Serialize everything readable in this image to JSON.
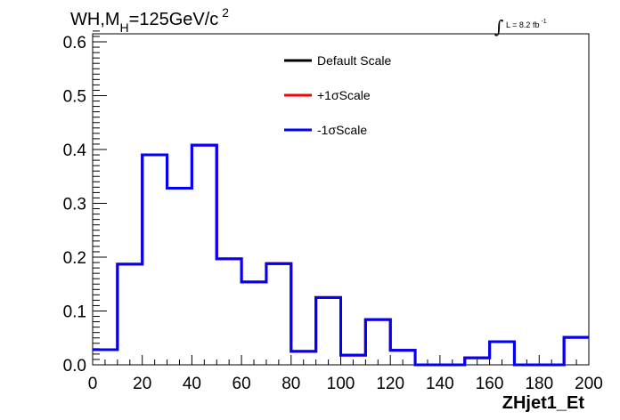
{
  "chart_data": {
    "type": "line",
    "title": {
      "main": "WH,M",
      "subscript": "H",
      "rest": "=125GeV/c",
      "superscript": "2"
    },
    "luminosity": {
      "symbol": "∫",
      "text": "L = 8.2 fb",
      "superscript": "-1"
    },
    "xlabel": "ZHjet1_Et",
    "ylabel": "",
    "xlim": [
      0,
      200
    ],
    "ylim": [
      0,
      0.62
    ],
    "x_ticks": [
      0,
      20,
      40,
      60,
      80,
      100,
      120,
      140,
      160,
      180,
      200
    ],
    "x_tick_labels": [
      "0",
      "20",
      "40",
      "60",
      "80",
      "100",
      "120",
      "140",
      "160",
      "180",
      "200"
    ],
    "y_ticks": [
      0,
      0.1,
      0.2,
      0.3,
      0.4,
      0.5,
      0.6
    ],
    "y_tick_labels": [
      "0.0",
      "0.1",
      "0.2",
      "0.3",
      "0.4",
      "0.5",
      "0.6"
    ],
    "bin_edges": [
      0,
      10,
      20,
      30,
      40,
      50,
      60,
      70,
      80,
      90,
      100,
      110,
      120,
      130,
      140,
      150,
      160,
      170,
      180,
      190,
      200
    ],
    "series": [
      {
        "name": "Default Scale",
        "color": "#000000",
        "values": [
          0.028,
          0.187,
          0.39,
          0.328,
          0.408,
          0.197,
          0.154,
          0.188,
          0.025,
          0.125,
          0.018,
          0.084,
          0.027,
          0.0,
          0.0,
          0.013,
          0.043,
          0.0,
          0.0,
          0.051
        ]
      },
      {
        "name": "+1σScale",
        "color": "#ff0000",
        "values": [
          0.028,
          0.187,
          0.39,
          0.328,
          0.408,
          0.197,
          0.154,
          0.188,
          0.025,
          0.125,
          0.018,
          0.084,
          0.027,
          0.0,
          0.0,
          0.013,
          0.043,
          0.0,
          0.0,
          0.051
        ]
      },
      {
        "name": "-1σScale",
        "color": "#0000ff",
        "values": [
          0.028,
          0.187,
          0.39,
          0.328,
          0.408,
          0.197,
          0.154,
          0.188,
          0.025,
          0.125,
          0.018,
          0.084,
          0.027,
          0.0,
          0.0,
          0.013,
          0.043,
          0.0,
          0.0,
          0.051
        ]
      }
    ],
    "legend": {
      "placement": "top-right",
      "border": false
    },
    "grid": false
  }
}
